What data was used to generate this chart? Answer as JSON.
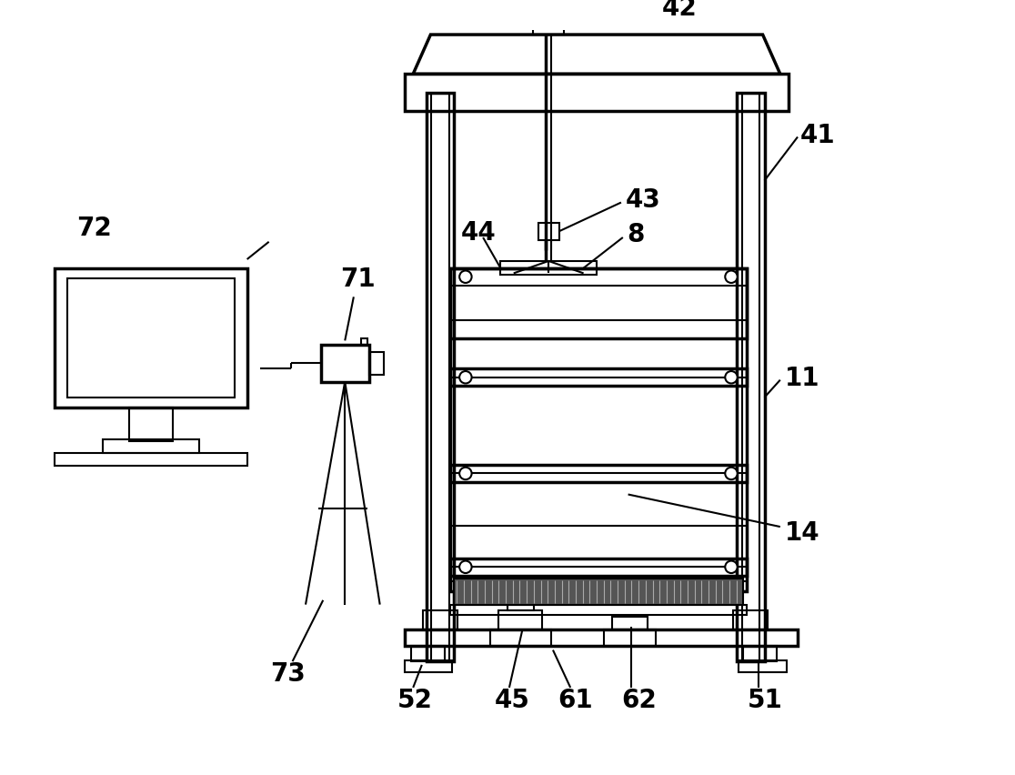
{
  "bg_color": "#ffffff",
  "lw": 1.5,
  "lw2": 2.5,
  "label_fontsize": 20
}
